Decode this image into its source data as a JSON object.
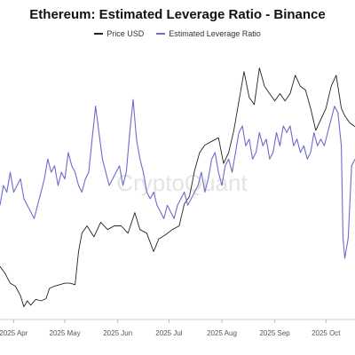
{
  "chart_data": {
    "type": "line",
    "title": "Ethereum: Estimated Leverage Ratio - Binance",
    "watermark": "CryptoQuant",
    "legend_position": "top-center",
    "grid": false,
    "x_range": [
      "2025-03-24",
      "2025-10-18"
    ],
    "x_ticks": [
      {
        "date": "2025-04-01",
        "label": "2025 Apr"
      },
      {
        "date": "2025-05-01",
        "label": "2025 May"
      },
      {
        "date": "2025-06-01",
        "label": "2025 Jun"
      },
      {
        "date": "2025-07-01",
        "label": "2025 Jul"
      },
      {
        "date": "2025-08-01",
        "label": "2025 Aug"
      },
      {
        "date": "2025-09-01",
        "label": "2025 Sep"
      },
      {
        "date": "2025-10-01",
        "label": "2025 Oct"
      }
    ],
    "series": [
      {
        "name": "Price USD",
        "color": "#222222",
        "axis": "left",
        "y_range": [
          1350,
          4950
        ],
        "points": [
          [
            "2025-03-24",
            2050
          ],
          [
            "2025-03-27",
            1950
          ],
          [
            "2025-03-30",
            1820
          ],
          [
            "2025-04-02",
            1780
          ],
          [
            "2025-04-05",
            1650
          ],
          [
            "2025-04-07",
            1500
          ],
          [
            "2025-04-09",
            1580
          ],
          [
            "2025-04-11",
            1520
          ],
          [
            "2025-04-14",
            1600
          ],
          [
            "2025-04-17",
            1580
          ],
          [
            "2025-04-20",
            1610
          ],
          [
            "2025-04-22",
            1750
          ],
          [
            "2025-04-25",
            1780
          ],
          [
            "2025-04-28",
            1800
          ],
          [
            "2025-05-01",
            1820
          ],
          [
            "2025-05-04",
            1820
          ],
          [
            "2025-05-07",
            1800
          ],
          [
            "2025-05-09",
            2250
          ],
          [
            "2025-05-11",
            2500
          ],
          [
            "2025-05-14",
            2600
          ],
          [
            "2025-05-18",
            2450
          ],
          [
            "2025-05-22",
            2650
          ],
          [
            "2025-05-26",
            2550
          ],
          [
            "2025-05-30",
            2600
          ],
          [
            "2025-06-03",
            2600
          ],
          [
            "2025-06-07",
            2500
          ],
          [
            "2025-06-11",
            2780
          ],
          [
            "2025-06-14",
            2550
          ],
          [
            "2025-06-18",
            2500
          ],
          [
            "2025-06-22",
            2250
          ],
          [
            "2025-06-25",
            2420
          ],
          [
            "2025-06-29",
            2480
          ],
          [
            "2025-07-03",
            2550
          ],
          [
            "2025-07-07",
            2600
          ],
          [
            "2025-07-10",
            2900
          ],
          [
            "2025-07-13",
            3000
          ],
          [
            "2025-07-16",
            3350
          ],
          [
            "2025-07-19",
            3600
          ],
          [
            "2025-07-22",
            3700
          ],
          [
            "2025-07-26",
            3750
          ],
          [
            "2025-07-30",
            3800
          ],
          [
            "2025-08-02",
            3450
          ],
          [
            "2025-08-05",
            3600
          ],
          [
            "2025-08-08",
            3900
          ],
          [
            "2025-08-11",
            4300
          ],
          [
            "2025-08-14",
            4700
          ],
          [
            "2025-08-17",
            4350
          ],
          [
            "2025-08-20",
            4250
          ],
          [
            "2025-08-23",
            4750
          ],
          [
            "2025-08-26",
            4500
          ],
          [
            "2025-08-29",
            4400
          ],
          [
            "2025-09-01",
            4300
          ],
          [
            "2025-09-04",
            4400
          ],
          [
            "2025-09-07",
            4300
          ],
          [
            "2025-09-10",
            4400
          ],
          [
            "2025-09-13",
            4650
          ],
          [
            "2025-09-16",
            4500
          ],
          [
            "2025-09-19",
            4450
          ],
          [
            "2025-09-22",
            4200
          ],
          [
            "2025-09-25",
            3900
          ],
          [
            "2025-09-28",
            4050
          ],
          [
            "2025-10-01",
            4200
          ],
          [
            "2025-10-04",
            4500
          ],
          [
            "2025-10-07",
            4650
          ],
          [
            "2025-10-10",
            4200
          ],
          [
            "2025-10-12",
            4100
          ],
          [
            "2025-10-15",
            4000
          ],
          [
            "2025-10-18",
            3950
          ]
        ]
      },
      {
        "name": "Estimated Leverage Ratio",
        "color": "#6e6ad0",
        "axis": "right",
        "y_range": [
          0.38,
          0.78
        ],
        "points": [
          [
            "2025-03-24",
            0.55
          ],
          [
            "2025-03-26",
            0.58
          ],
          [
            "2025-03-28",
            0.57
          ],
          [
            "2025-03-30",
            0.6
          ],
          [
            "2025-04-01",
            0.57
          ],
          [
            "2025-04-03",
            0.58
          ],
          [
            "2025-04-05",
            0.59
          ],
          [
            "2025-04-07",
            0.56
          ],
          [
            "2025-04-09",
            0.55
          ],
          [
            "2025-04-11",
            0.54
          ],
          [
            "2025-04-13",
            0.53
          ],
          [
            "2025-04-15",
            0.55
          ],
          [
            "2025-04-17",
            0.57
          ],
          [
            "2025-04-19",
            0.59
          ],
          [
            "2025-04-21",
            0.62
          ],
          [
            "2025-04-23",
            0.6
          ],
          [
            "2025-04-25",
            0.61
          ],
          [
            "2025-04-27",
            0.58
          ],
          [
            "2025-04-29",
            0.6
          ],
          [
            "2025-05-01",
            0.59
          ],
          [
            "2025-05-03",
            0.63
          ],
          [
            "2025-05-05",
            0.61
          ],
          [
            "2025-05-07",
            0.6
          ],
          [
            "2025-05-09",
            0.58
          ],
          [
            "2025-05-11",
            0.57
          ],
          [
            "2025-05-13",
            0.59
          ],
          [
            "2025-05-15",
            0.6
          ],
          [
            "2025-05-17",
            0.65
          ],
          [
            "2025-05-19",
            0.7
          ],
          [
            "2025-05-21",
            0.66
          ],
          [
            "2025-05-23",
            0.62
          ],
          [
            "2025-05-25",
            0.6
          ],
          [
            "2025-05-27",
            0.58
          ],
          [
            "2025-05-29",
            0.59
          ],
          [
            "2025-05-31",
            0.6
          ],
          [
            "2025-06-02",
            0.61
          ],
          [
            "2025-06-04",
            0.58
          ],
          [
            "2025-06-06",
            0.6
          ],
          [
            "2025-06-08",
            0.66
          ],
          [
            "2025-06-10",
            0.71
          ],
          [
            "2025-06-12",
            0.65
          ],
          [
            "2025-06-14",
            0.62
          ],
          [
            "2025-06-16",
            0.6
          ],
          [
            "2025-06-18",
            0.57
          ],
          [
            "2025-06-20",
            0.56
          ],
          [
            "2025-06-22",
            0.57
          ],
          [
            "2025-06-24",
            0.55
          ],
          [
            "2025-06-26",
            0.54
          ],
          [
            "2025-06-28",
            0.53
          ],
          [
            "2025-06-30",
            0.55
          ],
          [
            "2025-07-02",
            0.54
          ],
          [
            "2025-07-04",
            0.53
          ],
          [
            "2025-07-06",
            0.55
          ],
          [
            "2025-07-08",
            0.56
          ],
          [
            "2025-07-10",
            0.57
          ],
          [
            "2025-07-12",
            0.55
          ],
          [
            "2025-07-14",
            0.56
          ],
          [
            "2025-07-16",
            0.57
          ],
          [
            "2025-07-18",
            0.58
          ],
          [
            "2025-07-20",
            0.6
          ],
          [
            "2025-07-22",
            0.57
          ],
          [
            "2025-07-24",
            0.59
          ],
          [
            "2025-07-26",
            0.62
          ],
          [
            "2025-07-28",
            0.63
          ],
          [
            "2025-07-30",
            0.6
          ],
          [
            "2025-08-01",
            0.58
          ],
          [
            "2025-08-03",
            0.61
          ],
          [
            "2025-08-05",
            0.62
          ],
          [
            "2025-08-07",
            0.6
          ],
          [
            "2025-08-09",
            0.63
          ],
          [
            "2025-08-11",
            0.66
          ],
          [
            "2025-08-13",
            0.67
          ],
          [
            "2025-08-15",
            0.64
          ],
          [
            "2025-08-17",
            0.65
          ],
          [
            "2025-08-19",
            0.62
          ],
          [
            "2025-08-21",
            0.63
          ],
          [
            "2025-08-23",
            0.66
          ],
          [
            "2025-08-25",
            0.64
          ],
          [
            "2025-08-27",
            0.65
          ],
          [
            "2025-08-29",
            0.62
          ],
          [
            "2025-08-31",
            0.63
          ],
          [
            "2025-09-02",
            0.66
          ],
          [
            "2025-09-04",
            0.64
          ],
          [
            "2025-09-06",
            0.67
          ],
          [
            "2025-09-08",
            0.66
          ],
          [
            "2025-09-10",
            0.67
          ],
          [
            "2025-09-12",
            0.64
          ],
          [
            "2025-09-14",
            0.65
          ],
          [
            "2025-09-16",
            0.63
          ],
          [
            "2025-09-18",
            0.64
          ],
          [
            "2025-09-20",
            0.62
          ],
          [
            "2025-09-22",
            0.63
          ],
          [
            "2025-09-24",
            0.66
          ],
          [
            "2025-09-26",
            0.64
          ],
          [
            "2025-09-28",
            0.65
          ],
          [
            "2025-09-30",
            0.64
          ],
          [
            "2025-10-02",
            0.66
          ],
          [
            "2025-10-04",
            0.68
          ],
          [
            "2025-10-06",
            0.7
          ],
          [
            "2025-10-08",
            0.69
          ],
          [
            "2025-10-10",
            0.64
          ],
          [
            "2025-10-11",
            0.5
          ],
          [
            "2025-10-12",
            0.47
          ],
          [
            "2025-10-14",
            0.5
          ],
          [
            "2025-10-16",
            0.61
          ],
          [
            "2025-10-18",
            0.62
          ]
        ]
      }
    ]
  }
}
